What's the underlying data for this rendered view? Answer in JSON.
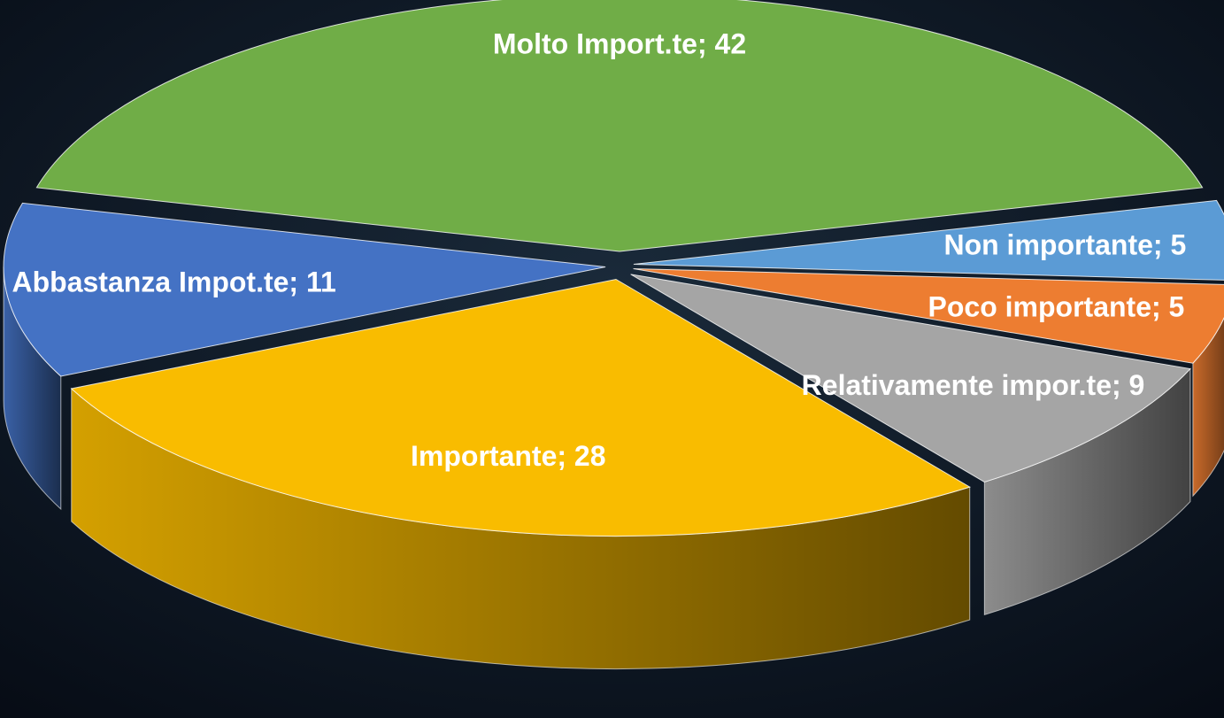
{
  "chart_data": {
    "type": "pie3d",
    "values": [
      42,
      5,
      5,
      9,
      28,
      11
    ],
    "value_labels": [
      "Molto Import.te; 42",
      "Non importante; 5",
      "Poco importante; 5",
      "Relativamente impor.te; 9",
      "Importante; 28",
      "Abbastanza Impot.te; 11"
    ],
    "colors": [
      "#70ad47",
      "#5b9bd5",
      "#ed7d31",
      "#a5a5a5",
      "#f9bc00",
      "#4472c4"
    ]
  }
}
